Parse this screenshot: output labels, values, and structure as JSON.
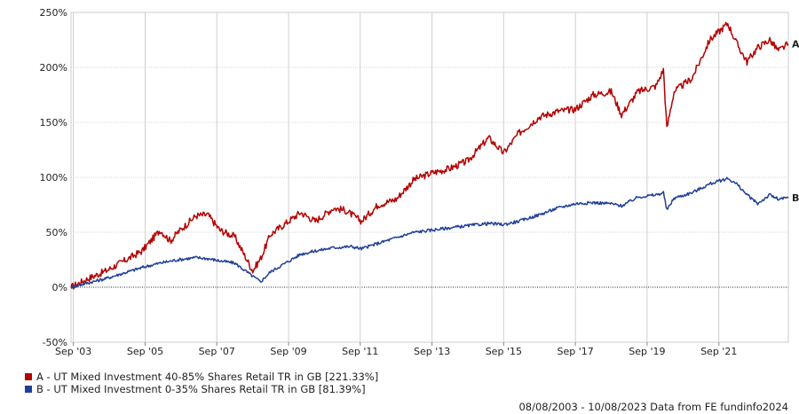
{
  "chart_data": {
    "type": "line",
    "x_ticks": [
      "Sep '03",
      "Sep '05",
      "Sep '07",
      "Sep '09",
      "Sep '11",
      "Sep '13",
      "Sep '15",
      "Sep '17",
      "Sep '19",
      "Sep '21"
    ],
    "y_ticks": [
      "250%",
      "200%",
      "150%",
      "100%",
      "50%",
      "0%",
      "-50%"
    ],
    "ylim": [
      -50,
      250
    ],
    "x_range": [
      "2003-08-08",
      "2023-08-10"
    ],
    "grid": true,
    "series": [
      {
        "name": "A - UT Mixed Investment 40-85% Shares Retail TR in GB [221.33%]",
        "end_label": "A",
        "color": "#b30000",
        "x": [
          "2003-08-08",
          "2004-02-01",
          "2004-08-01",
          "2005-02-01",
          "2005-08-01",
          "2006-02-01",
          "2006-05-15",
          "2006-08-01",
          "2007-02-01",
          "2007-06-01",
          "2007-10-01",
          "2008-03-01",
          "2008-09-01",
          "2008-11-20",
          "2009-03-01",
          "2009-08-01",
          "2010-01-01",
          "2010-06-01",
          "2010-12-01",
          "2011-04-01",
          "2011-09-15",
          "2012-03-01",
          "2012-09-01",
          "2013-03-01",
          "2013-09-01",
          "2014-03-01",
          "2014-09-01",
          "2015-04-01",
          "2015-09-01",
          "2016-02-01",
          "2016-09-01",
          "2017-03-01",
          "2017-09-01",
          "2018-03-01",
          "2018-09-01",
          "2018-12-15",
          "2019-06-01",
          "2019-12-01",
          "2020-02-15",
          "2020-03-20",
          "2020-06-01",
          "2020-12-01",
          "2021-06-01",
          "2021-12-01",
          "2022-03-01",
          "2022-06-15",
          "2022-10-01",
          "2023-02-01",
          "2023-05-01",
          "2023-08-10"
        ],
        "values": [
          0,
          8,
          15,
          24,
          33,
          52,
          42,
          50,
          65,
          66,
          52,
          46,
          15,
          26,
          48,
          58,
          68,
          60,
          72,
          70,
          60,
          75,
          80,
          98,
          104,
          108,
          115,
          136,
          122,
          140,
          155,
          160,
          162,
          175,
          178,
          157,
          178,
          183,
          198,
          144,
          178,
          190,
          225,
          240,
          222,
          205,
          218,
          225,
          215,
          221.33
        ]
      },
      {
        "name": "B - UT Mixed Investment 0-35% Shares Retail TR in GB [81.39%]",
        "end_label": "B",
        "color": "#1f3f99",
        "x": [
          "2003-08-08",
          "2004-02-01",
          "2004-08-01",
          "2005-02-01",
          "2005-08-01",
          "2006-02-01",
          "2006-08-01",
          "2007-02-01",
          "2007-06-01",
          "2007-10-01",
          "2008-03-01",
          "2008-09-01",
          "2008-11-20",
          "2009-03-01",
          "2009-08-01",
          "2010-01-01",
          "2010-06-01",
          "2010-12-01",
          "2011-06-01",
          "2011-09-15",
          "2012-03-01",
          "2012-09-01",
          "2013-03-01",
          "2013-09-01",
          "2014-03-01",
          "2014-09-01",
          "2015-04-01",
          "2015-09-01",
          "2016-02-01",
          "2016-09-01",
          "2017-03-01",
          "2017-09-01",
          "2018-03-01",
          "2018-09-01",
          "2018-12-15",
          "2019-06-01",
          "2019-12-01",
          "2020-02-15",
          "2020-03-20",
          "2020-06-01",
          "2020-12-01",
          "2021-06-01",
          "2021-12-01",
          "2022-03-01",
          "2022-06-15",
          "2022-10-01",
          "2023-02-01",
          "2023-05-01",
          "2023-08-10"
        ],
        "values": [
          0,
          4,
          8,
          13,
          18,
          22,
          25,
          27,
          26,
          24,
          22,
          10,
          5,
          14,
          22,
          30,
          33,
          36,
          37,
          35,
          40,
          45,
          50,
          52,
          54,
          56,
          58,
          57,
          60,
          66,
          72,
          76,
          77,
          76,
          74,
          82,
          84,
          86,
          70,
          81,
          86,
          94,
          99,
          94,
          84,
          76,
          84,
          80,
          81.39
        ]
      }
    ]
  },
  "footer": "08/08/2003 - 10/08/2023 Data from FE fundinfo2024"
}
